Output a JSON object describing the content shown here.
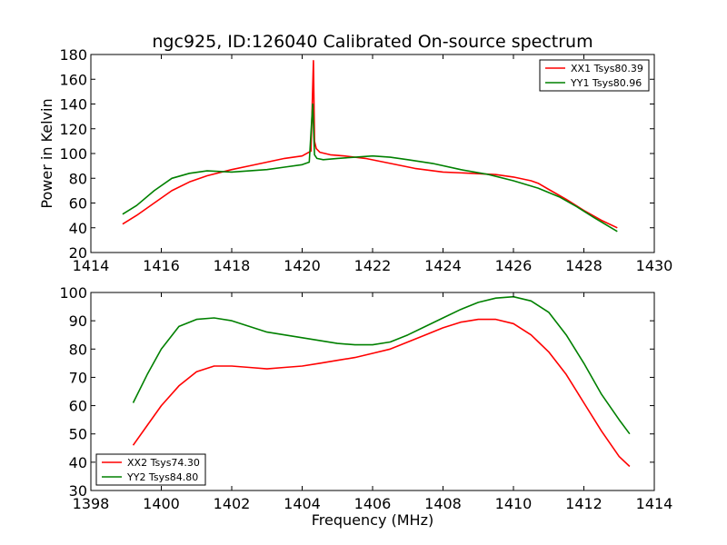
{
  "figure": {
    "title": "ngc925, ID:126040 Calibrated On-source spectrum"
  },
  "chart_data": [
    {
      "type": "line",
      "title": "ngc925, ID:126040 Calibrated On-source spectrum",
      "xlabel": "",
      "ylabel": "Power in Kelvin",
      "xlim": [
        1414,
        1430
      ],
      "ylim": [
        20,
        180
      ],
      "xticks": [
        1414,
        1416,
        1418,
        1420,
        1422,
        1424,
        1426,
        1428,
        1430
      ],
      "yticks": [
        20,
        40,
        60,
        80,
        100,
        120,
        140,
        160,
        180
      ],
      "grid": false,
      "legend_position": "top-right",
      "series": [
        {
          "name": "XX1 Tsys80.39",
          "color": "#ff0000",
          "x": [
            1414.9,
            1415.3,
            1415.8,
            1416.3,
            1416.8,
            1417.3,
            1418.0,
            1418.5,
            1419.0,
            1419.5,
            1420.0,
            1420.25,
            1420.32,
            1420.35,
            1420.4,
            1420.5,
            1420.8,
            1421.2,
            1421.8,
            1422.5,
            1423.2,
            1424.0,
            1424.8,
            1425.5,
            1426.0,
            1426.5,
            1426.7,
            1427.0,
            1427.5,
            1428.0,
            1428.5,
            1428.95
          ],
          "y": [
            43,
            50,
            60,
            70,
            77,
            82,
            87,
            90,
            93,
            96,
            98,
            102,
            175,
            110,
            104,
            101,
            99,
            98,
            96,
            92,
            88,
            85,
            84,
            83,
            81,
            78,
            76,
            71,
            63,
            54,
            46,
            40
          ]
        },
        {
          "name": "YY1 Tsys80.96",
          "color": "#008000",
          "x": [
            1414.9,
            1415.3,
            1415.8,
            1416.3,
            1416.8,
            1417.3,
            1418.0,
            1418.5,
            1419.0,
            1419.5,
            1420.0,
            1420.2,
            1420.3,
            1420.35,
            1420.42,
            1420.6,
            1421.0,
            1421.5,
            1422.0,
            1422.5,
            1423.0,
            1423.7,
            1424.5,
            1425.3,
            1426.0,
            1426.7,
            1427.3,
            1427.8,
            1428.3,
            1428.95
          ],
          "y": [
            51,
            58,
            70,
            80,
            84,
            86,
            85,
            86,
            87,
            89,
            91,
            93,
            140,
            99,
            96,
            95,
            96,
            97,
            98,
            97,
            95,
            92,
            87,
            83,
            78,
            72,
            65,
            57,
            48,
            37
          ]
        }
      ]
    },
    {
      "type": "line",
      "title": "",
      "xlabel": "Frequency (MHz)",
      "ylabel": "",
      "xlim": [
        1398,
        1414
      ],
      "ylim": [
        30,
        100
      ],
      "xticks": [
        1398,
        1400,
        1402,
        1404,
        1406,
        1408,
        1410,
        1412,
        1414
      ],
      "yticks": [
        30,
        40,
        50,
        60,
        70,
        80,
        90,
        100
      ],
      "grid": false,
      "legend_position": "bottom-left",
      "series": [
        {
          "name": "XX2 Tsys74.30",
          "color": "#ff0000",
          "x": [
            1399.2,
            1399.6,
            1400.0,
            1400.5,
            1401.0,
            1401.5,
            1402.0,
            1402.5,
            1403.0,
            1403.5,
            1404.0,
            1404.5,
            1405.0,
            1405.5,
            1406.0,
            1406.5,
            1407.0,
            1407.5,
            1408.0,
            1408.5,
            1409.0,
            1409.5,
            1410.0,
            1410.5,
            1411.0,
            1411.5,
            1412.0,
            1412.5,
            1413.0,
            1413.3
          ],
          "y": [
            46,
            53,
            60,
            67,
            72,
            74,
            74,
            73.5,
            73,
            73.5,
            74,
            75,
            76,
            77,
            78.5,
            80,
            82.5,
            85,
            87.5,
            89.5,
            90.5,
            90.5,
            89,
            85,
            79,
            71,
            61,
            51,
            42,
            38.5
          ]
        },
        {
          "name": "YY2 Tsys84.80",
          "color": "#008000",
          "x": [
            1399.2,
            1399.6,
            1400.0,
            1400.5,
            1401.0,
            1401.5,
            1402.0,
            1402.5,
            1403.0,
            1403.5,
            1404.0,
            1404.5,
            1405.0,
            1405.5,
            1406.0,
            1406.5,
            1407.0,
            1407.5,
            1408.0,
            1408.5,
            1409.0,
            1409.5,
            1410.0,
            1410.5,
            1411.0,
            1411.5,
            1412.0,
            1412.5,
            1413.0,
            1413.3
          ],
          "y": [
            61,
            71,
            80,
            88,
            90.5,
            91,
            90,
            88,
            86,
            85,
            84,
            83,
            82,
            81.5,
            81.5,
            82.5,
            85,
            88,
            91,
            94,
            96.5,
            98,
            98.5,
            97,
            93,
            85,
            75,
            64,
            55,
            50
          ]
        }
      ]
    }
  ]
}
